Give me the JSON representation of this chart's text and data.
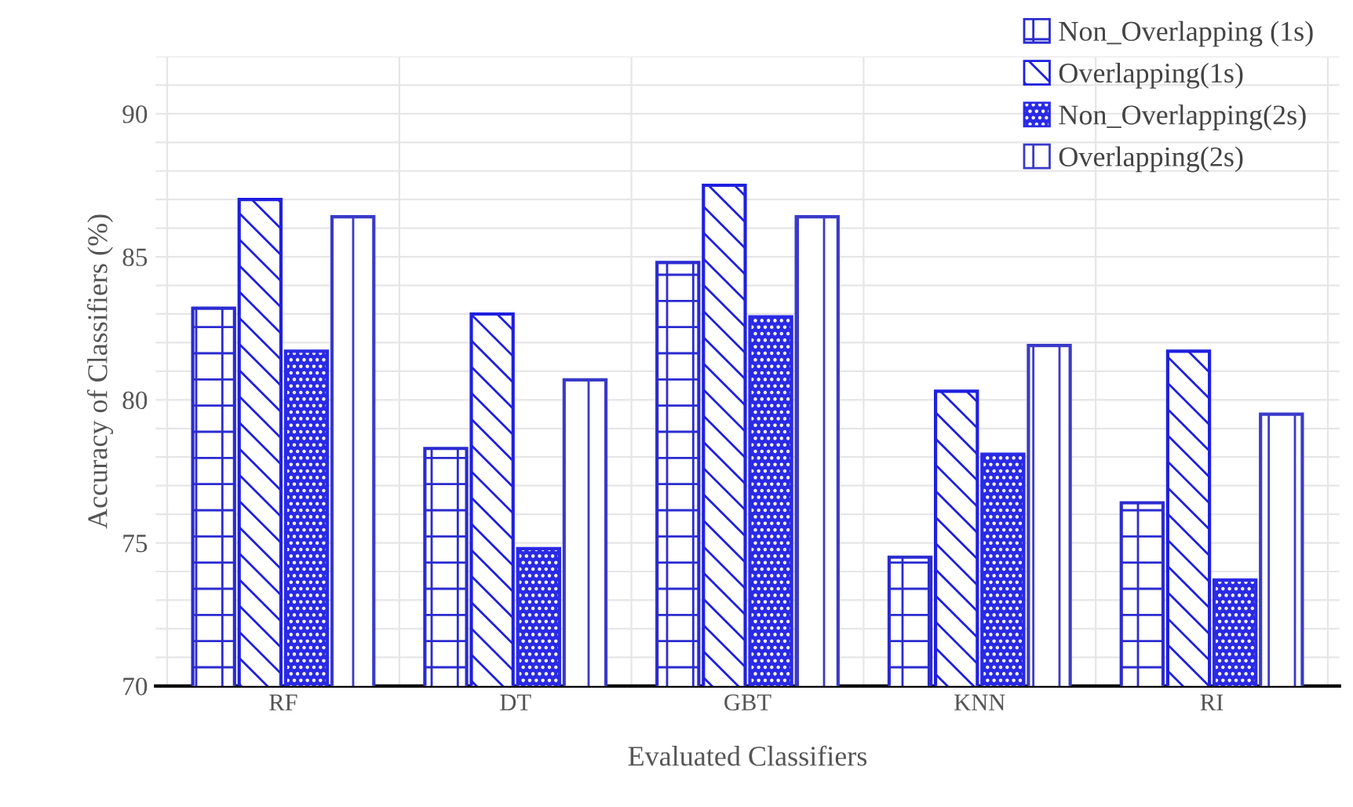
{
  "chart_data": {
    "type": "bar",
    "xlabel": "Evaluated Classifiers",
    "ylabel": "Accuracy of Classifiers (%)",
    "categories": [
      "RF",
      "DT",
      "GBT",
      "KNN",
      "RI"
    ],
    "series": [
      {
        "name": "Non_Overlapping (1s)",
        "color": "#2b2bd0",
        "values": [
          83.2,
          78.3,
          84.8,
          74.5,
          76.4
        ]
      },
      {
        "name": "Overlapping(1s)",
        "color": "#1f1fe0",
        "values": [
          87.0,
          83.0,
          87.5,
          80.3,
          81.7
        ]
      },
      {
        "name": "Non_Overlapping(2s)",
        "color": "#2a2ae6",
        "values": [
          81.7,
          74.8,
          82.9,
          78.1,
          73.7
        ]
      },
      {
        "name": "Overlapping(2s)",
        "color": "#3a3ac8",
        "values": [
          86.4,
          80.7,
          86.4,
          81.9,
          79.5
        ]
      }
    ],
    "ylim": [
      70,
      92
    ],
    "yticks": [
      70,
      {
        "value": 71,
        "label": null
      },
      {
        "value": 72,
        "label": null
      },
      {
        "value": 73,
        "label": null
      },
      {
        "value": 74,
        "label": null
      },
      75,
      {
        "value": 76,
        "label": null
      },
      {
        "value": 77,
        "label": null
      },
      {
        "value": 78,
        "label": null
      },
      {
        "value": 79,
        "label": null
      },
      80,
      {
        "value": 81,
        "label": null
      },
      {
        "value": 82,
        "label": null
      },
      {
        "value": 83,
        "label": null
      },
      {
        "value": 84,
        "label": null
      },
      85,
      {
        "value": 86,
        "label": null
      },
      {
        "value": 87,
        "label": null
      },
      {
        "value": 88,
        "label": null
      },
      {
        "value": 89,
        "label": null
      },
      90,
      {
        "value": 91,
        "label": null
      },
      {
        "value": 92,
        "label": null
      }
    ],
    "grid": true,
    "legend": "top right"
  }
}
